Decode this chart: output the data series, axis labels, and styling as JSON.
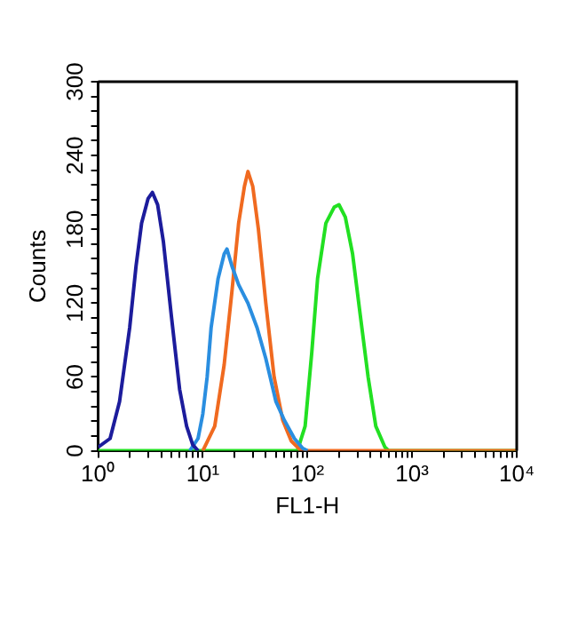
{
  "chart_data": {
    "type": "line",
    "xlabel": "FL1-H",
    "ylabel": "Counts",
    "log": "x",
    "xlim": [
      1,
      10000
    ],
    "xticks": [
      {
        "value": 1,
        "label": "10⁰"
      },
      {
        "value": 2,
        "label": null
      },
      {
        "value": 3,
        "label": null
      },
      {
        "value": 4,
        "label": null
      },
      {
        "value": 5,
        "label": null
      },
      {
        "value": 6,
        "label": null
      },
      {
        "value": 7,
        "label": null
      },
      {
        "value": 8,
        "label": null
      },
      {
        "value": 9,
        "label": null
      },
      {
        "value": 10,
        "label": "10¹"
      },
      {
        "value": 20,
        "label": null
      },
      {
        "value": 30,
        "label": null
      },
      {
        "value": 40,
        "label": null
      },
      {
        "value": 50,
        "label": null
      },
      {
        "value": 60,
        "label": null
      },
      {
        "value": 70,
        "label": null
      },
      {
        "value": 80,
        "label": null
      },
      {
        "value": 90,
        "label": null
      },
      {
        "value": 100,
        "label": "10²"
      },
      {
        "value": 200,
        "label": null
      },
      {
        "value": 300,
        "label": null
      },
      {
        "value": 400,
        "label": null
      },
      {
        "value": 500,
        "label": null
      },
      {
        "value": 600,
        "label": null
      },
      {
        "value": 700,
        "label": null
      },
      {
        "value": 800,
        "label": null
      },
      {
        "value": 900,
        "label": null
      },
      {
        "value": 1000,
        "label": "10³"
      },
      {
        "value": 2000,
        "label": null
      },
      {
        "value": 3000,
        "label": null
      },
      {
        "value": 4000,
        "label": null
      },
      {
        "value": 5000,
        "label": null
      },
      {
        "value": 6000,
        "label": null
      },
      {
        "value": 7000,
        "label": null
      },
      {
        "value": 8000,
        "label": null
      },
      {
        "value": 9000,
        "label": null
      },
      {
        "value": 10000,
        "label": "10⁴"
      }
    ],
    "ylim": [
      0,
      300
    ],
    "yticks": [
      0,
      {
        "value": 12,
        "label": null
      },
      {
        "value": 24,
        "label": null
      },
      {
        "value": 36,
        "label": null
      },
      {
        "value": 48,
        "label": null
      },
      60,
      {
        "value": 72,
        "label": null
      },
      {
        "value": 84,
        "label": null
      },
      {
        "value": 96,
        "label": null
      },
      {
        "value": 108,
        "label": null
      },
      120,
      {
        "value": 132,
        "label": null
      },
      {
        "value": 144,
        "label": null
      },
      {
        "value": 156,
        "label": null
      },
      {
        "value": 168,
        "label": null
      },
      180,
      {
        "value": 192,
        "label": null
      },
      {
        "value": 204,
        "label": null
      },
      {
        "value": 216,
        "label": null
      },
      {
        "value": 228,
        "label": null
      },
      240,
      {
        "value": 252,
        "label": null
      },
      {
        "value": 264,
        "label": null
      },
      {
        "value": 276,
        "label": null
      },
      {
        "value": 288,
        "label": null
      },
      300
    ],
    "grid": false,
    "legend": false,
    "marker": "none",
    "series": [
      {
        "color": "#1c1c9c",
        "x": [
          1,
          1.3,
          1.6,
          2,
          2.3,
          2.6,
          3,
          3.3,
          3.7,
          4.2,
          5,
          6,
          7,
          8,
          9
        ],
        "values": [
          3,
          10,
          40,
          100,
          150,
          185,
          205,
          210,
          200,
          170,
          110,
          50,
          20,
          5,
          0
        ]
      },
      {
        "color": "#2a8ee0",
        "x": [
          7.5,
          9,
          10,
          11,
          12,
          14,
          16,
          17,
          19,
          22,
          27,
          33,
          40,
          50,
          60,
          75,
          90,
          100
        ],
        "values": [
          0,
          10,
          30,
          60,
          100,
          140,
          160,
          164,
          150,
          135,
          120,
          100,
          75,
          40,
          25,
          10,
          2,
          0
        ]
      },
      {
        "color": "#f06a20",
        "x": [
          10,
          13,
          16,
          19,
          22,
          25,
          27,
          30,
          34,
          40,
          48,
          58,
          70,
          85,
          100,
          10000
        ],
        "values": [
          0,
          20,
          70,
          130,
          185,
          215,
          227,
          215,
          180,
          120,
          60,
          25,
          8,
          1,
          0,
          0
        ]
      },
      {
        "color": "#22e022",
        "x": [
          1,
          80,
          95,
          110,
          125,
          150,
          180,
          200,
          230,
          270,
          320,
          380,
          450,
          550,
          600,
          10000
        ],
        "values": [
          0,
          0,
          20,
          80,
          140,
          185,
          198,
          200,
          190,
          160,
          110,
          60,
          20,
          3,
          0,
          0
        ]
      }
    ]
  }
}
